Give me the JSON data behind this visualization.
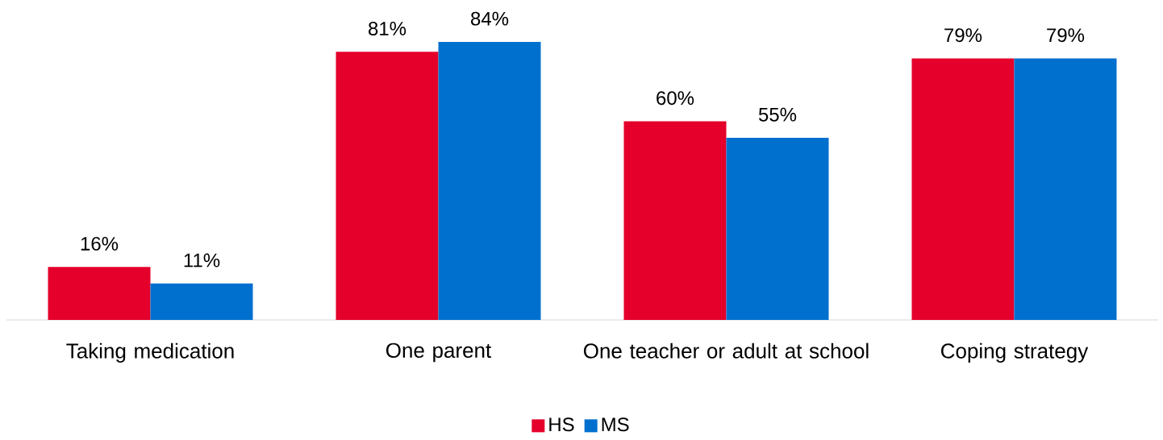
{
  "chart_data": {
    "type": "bar",
    "categories": [
      "Taking medication",
      "One parent",
      "One teacher or adult at school",
      "Coping strategy"
    ],
    "series": [
      {
        "name": "HS",
        "color": "#e4002b",
        "values": [
          16,
          81,
          60,
          79
        ],
        "value_labels": [
          "16%",
          "81%",
          "60%",
          "79%"
        ]
      },
      {
        "name": "MS",
        "color": "#0070cf",
        "values": [
          11,
          84,
          55,
          79
        ],
        "value_labels": [
          "11%",
          "84%",
          "55%",
          "79%"
        ]
      }
    ],
    "legend": "bottom"
  }
}
